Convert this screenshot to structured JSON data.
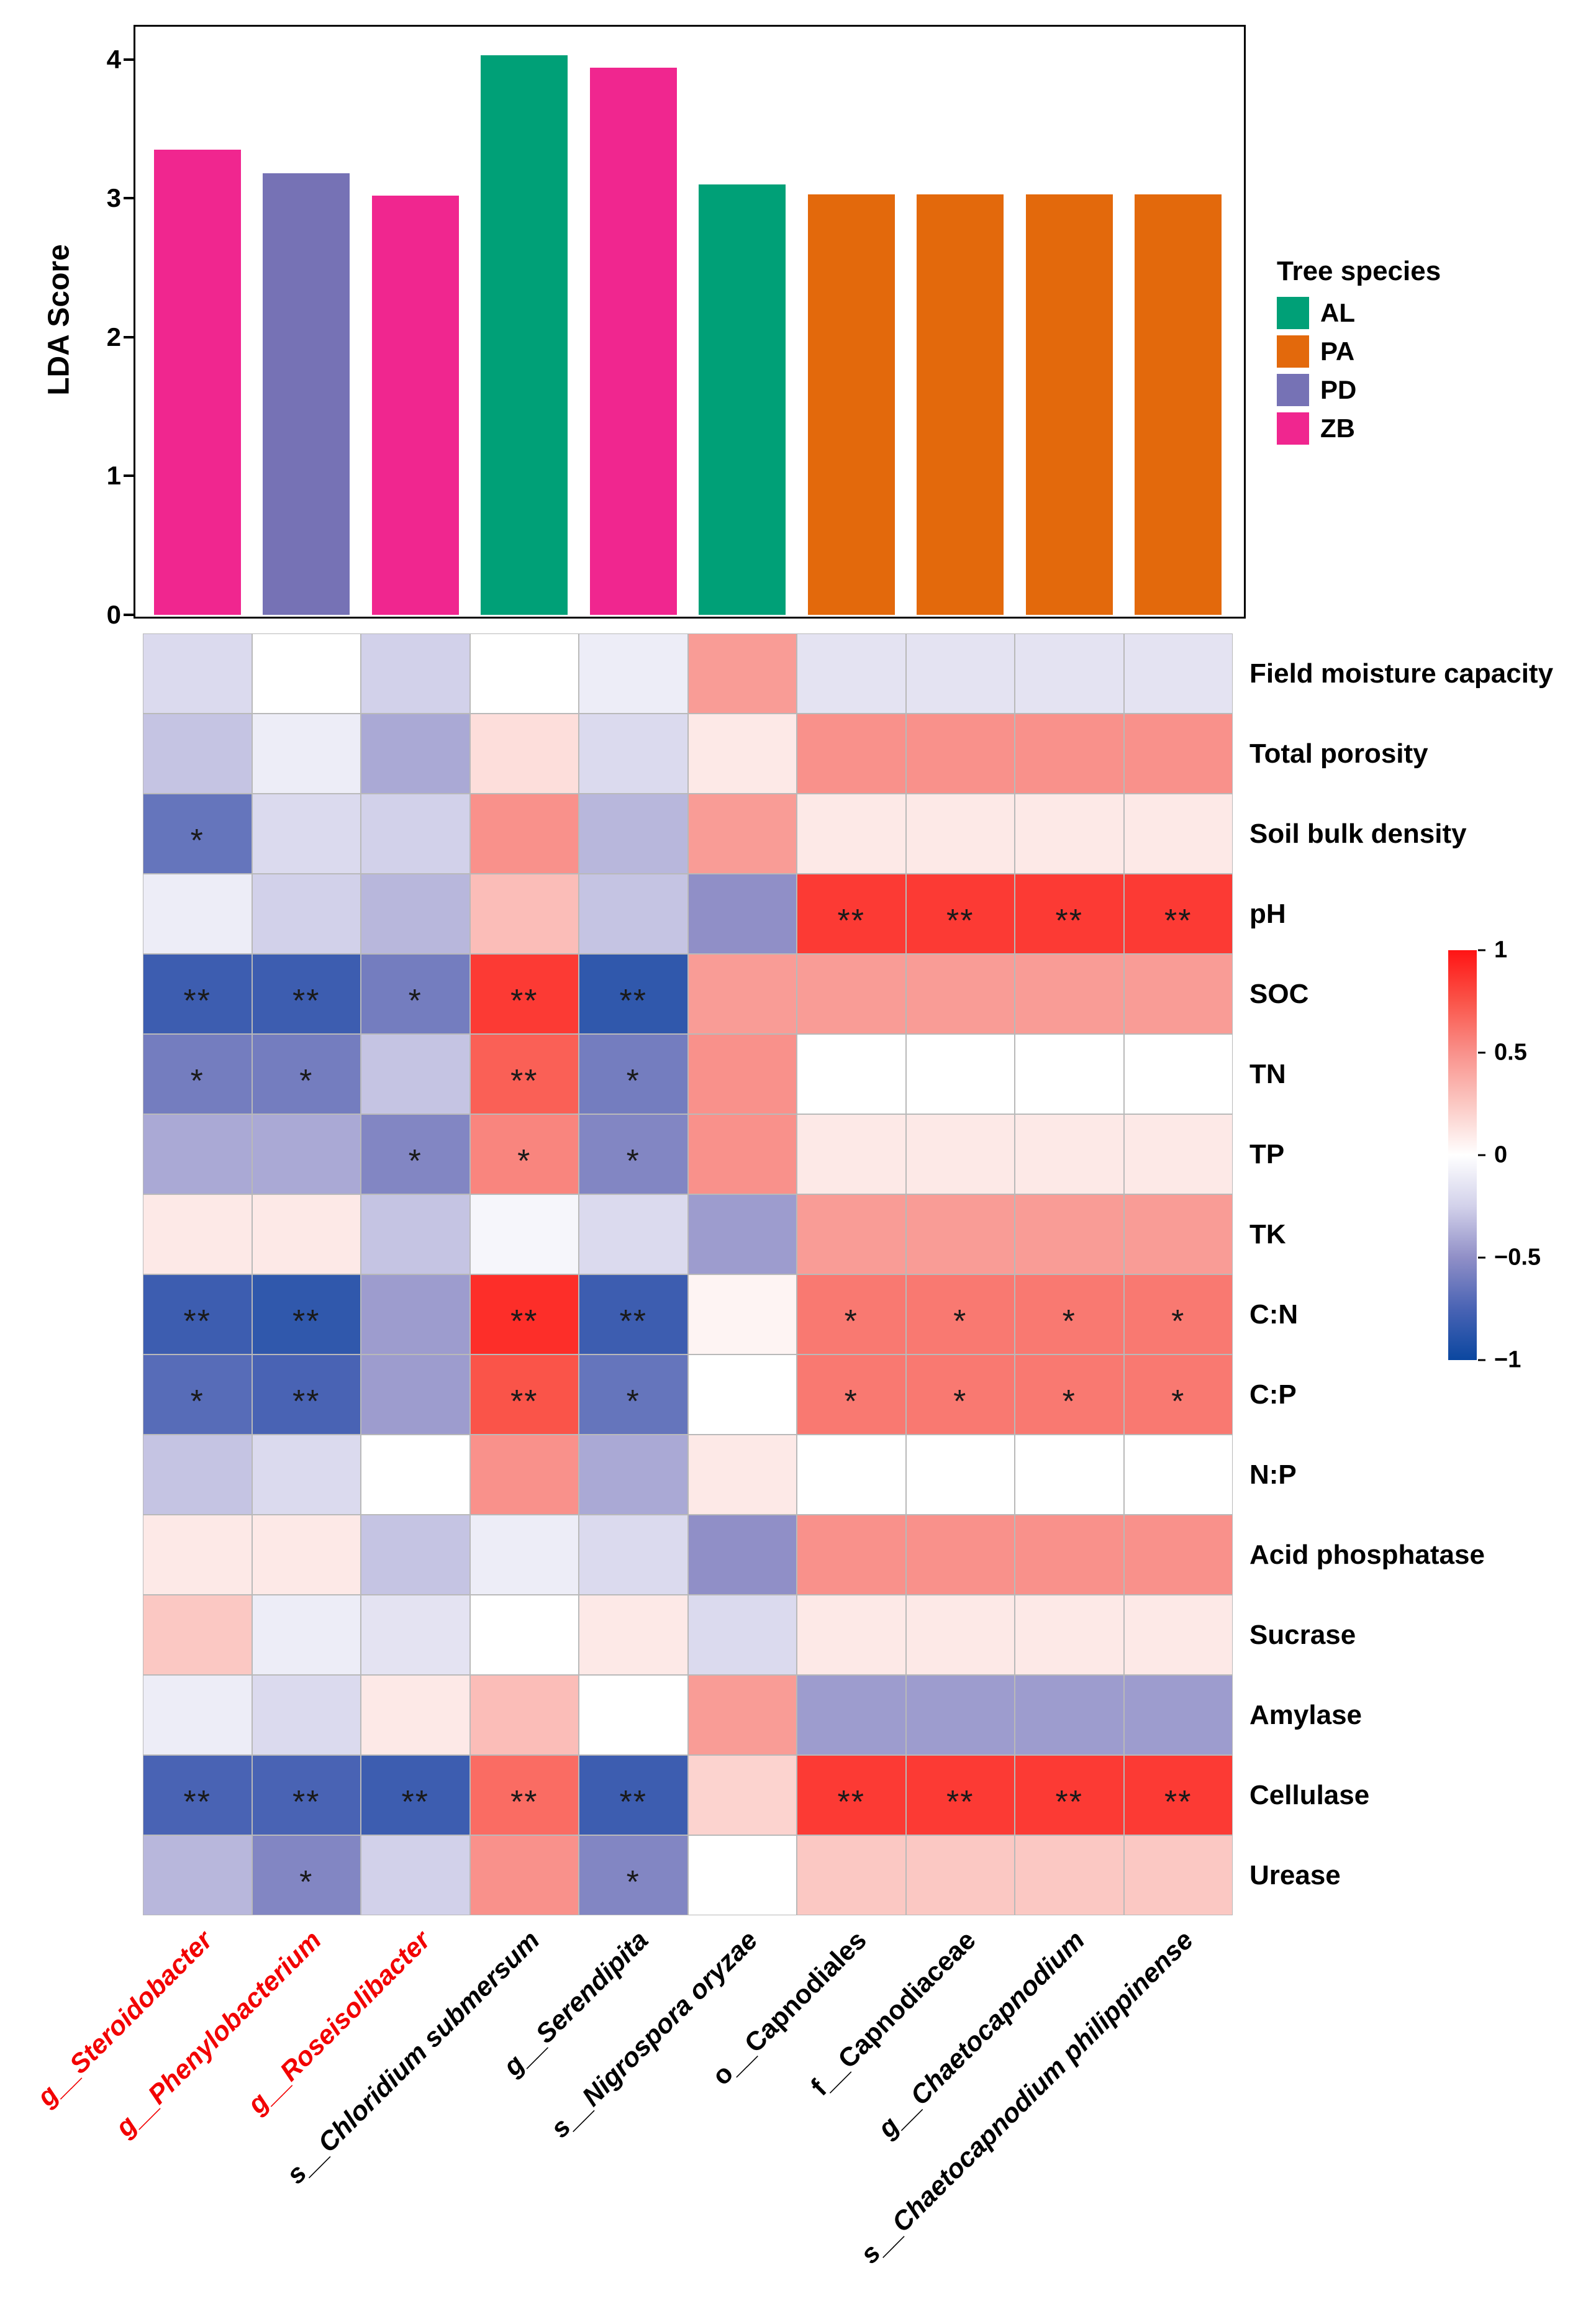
{
  "chart_data": [
    {
      "type": "bar",
      "ylabel": "LDA Score",
      "ylim": [
        0,
        4.25
      ],
      "yticks": [
        0,
        1,
        2,
        3,
        4
      ],
      "categories": [
        "g__Steroidobacter",
        "g__Phenylobacterium",
        "g__Roseisolibacter",
        "s__Chloridium submersum",
        "g__Serendipita",
        "s__Nigrospora oryzae",
        "o__Capnodiales",
        "f__Capnodiaceae",
        "g__Chaetocapnodium",
        "s__Chaetocapnodium philippinense"
      ],
      "groups": [
        "ZB",
        "PD",
        "ZB",
        "AL",
        "ZB",
        "AL",
        "PA",
        "PA",
        "PA",
        "PA"
      ],
      "values": [
        3.35,
        3.18,
        3.02,
        4.03,
        3.94,
        3.1,
        3.03,
        3.03,
        3.03,
        3.03
      ],
      "legend": {
        "title": "Tree species",
        "entries": [
          {
            "label": "AL",
            "color": "#00A077"
          },
          {
            "label": "PA",
            "color": "#E3690C"
          },
          {
            "label": "PD",
            "color": "#7672B5"
          },
          {
            "label": "ZB",
            "color": "#F0268F"
          }
        ]
      }
    },
    {
      "type": "heatmap",
      "rows": [
        "Field moisture capacity",
        "Total porosity",
        "Soil bulk density",
        "pH",
        "SOC",
        "TN",
        "TP",
        "TK",
        "C:N",
        "C:P",
        "N:P",
        "Acid phosphatase",
        "Sucrase",
        "Amylase",
        "Cellulase",
        "Urease"
      ],
      "columns": [
        {
          "label": "g__Steroidobacter",
          "color": "#F20000",
          "italic": true
        },
        {
          "label": "g__Phenylobacterium",
          "color": "#F20000",
          "italic": true
        },
        {
          "label": "g__Roseisolibacter",
          "color": "#F20000",
          "italic": true
        },
        {
          "label": "s__Chloridium submersum",
          "color": "#000000",
          "italic": true
        },
        {
          "label": "g__Serendipita",
          "color": "#000000",
          "italic": true
        },
        {
          "label": "s__Nigrospora oryzae",
          "color": "#000000",
          "italic": true
        },
        {
          "label": "o__Capnodiales",
          "color": "#000000",
          "italic": false
        },
        {
          "label": "f__Capnodiaceae",
          "color": "#000000",
          "italic": false
        },
        {
          "label": "g__Chaetocapnodium",
          "color": "#000000",
          "italic": true
        },
        {
          "label": "s__Chaetocapnodium philippinense",
          "color": "#000000",
          "italic": true
        }
      ],
      "values": [
        [
          -0.2,
          0.0,
          -0.25,
          0.0,
          -0.1,
          0.45,
          -0.15,
          -0.15,
          -0.15,
          -0.15
        ],
        [
          -0.3,
          -0.1,
          -0.4,
          0.15,
          -0.2,
          0.1,
          0.5,
          0.5,
          0.5,
          0.5
        ],
        [
          -0.65,
          -0.2,
          -0.25,
          0.5,
          -0.35,
          0.45,
          0.1,
          0.1,
          0.1,
          0.1
        ],
        [
          -0.1,
          -0.25,
          -0.35,
          0.3,
          -0.3,
          -0.5,
          0.85,
          0.85,
          0.85,
          0.85
        ],
        [
          -0.8,
          -0.8,
          -0.6,
          0.85,
          -0.85,
          0.45,
          0.45,
          0.45,
          0.45,
          0.45
        ],
        [
          -0.6,
          -0.6,
          -0.3,
          0.7,
          -0.6,
          0.5,
          0.0,
          0.0,
          0.0,
          0.0
        ],
        [
          -0.4,
          -0.4,
          -0.55,
          0.55,
          -0.55,
          0.5,
          0.1,
          0.1,
          0.1,
          0.1
        ],
        [
          0.1,
          0.1,
          -0.3,
          -0.05,
          -0.2,
          -0.45,
          0.45,
          0.45,
          0.45,
          0.45
        ],
        [
          -0.8,
          -0.85,
          -0.45,
          0.9,
          -0.8,
          0.05,
          0.6,
          0.6,
          0.6,
          0.6
        ],
        [
          -0.7,
          -0.75,
          -0.45,
          0.75,
          -0.65,
          0.0,
          0.6,
          0.6,
          0.6,
          0.6
        ],
        [
          -0.3,
          -0.2,
          0.0,
          0.5,
          -0.4,
          0.1,
          0.0,
          0.0,
          0.0,
          0.0
        ],
        [
          0.1,
          0.1,
          -0.3,
          -0.1,
          -0.2,
          -0.5,
          0.5,
          0.5,
          0.5,
          0.5
        ],
        [
          0.25,
          -0.1,
          -0.15,
          0.0,
          0.1,
          -0.2,
          0.1,
          0.1,
          0.1,
          0.1
        ],
        [
          -0.1,
          -0.2,
          0.1,
          0.3,
          0.0,
          0.45,
          -0.45,
          -0.45,
          -0.45,
          -0.45
        ],
        [
          -0.75,
          -0.75,
          -0.8,
          0.65,
          -0.8,
          0.2,
          0.85,
          0.85,
          0.85,
          0.85
        ],
        [
          -0.35,
          -0.55,
          -0.25,
          0.5,
          -0.55,
          0.0,
          0.25,
          0.25,
          0.25,
          0.25
        ]
      ],
      "significance": [
        [
          "",
          "",
          "",
          "",
          "",
          "",
          "",
          "",
          "",
          ""
        ],
        [
          "",
          "",
          "",
          "",
          "",
          "",
          "",
          "",
          "",
          ""
        ],
        [
          "*",
          "",
          "",
          "",
          "",
          "",
          "",
          "",
          "",
          ""
        ],
        [
          "",
          "",
          "",
          "",
          "",
          "",
          "**",
          "**",
          "**",
          "**"
        ],
        [
          "**",
          "**",
          "*",
          "**",
          "**",
          "",
          "",
          "",
          "",
          ""
        ],
        [
          "*",
          "*",
          "",
          "**",
          "*",
          "",
          "",
          "",
          "",
          ""
        ],
        [
          "",
          "",
          "*",
          "*",
          "*",
          "",
          "",
          "",
          "",
          ""
        ],
        [
          "",
          "",
          "",
          "",
          "",
          "",
          "",
          "",
          "",
          ""
        ],
        [
          "**",
          "**",
          "",
          "**",
          "**",
          "",
          "*",
          "*",
          "*",
          "*"
        ],
        [
          "*",
          "**",
          "",
          "**",
          "*",
          "",
          "*",
          "*",
          "*",
          "*"
        ],
        [
          "",
          "",
          "",
          "",
          "",
          "",
          "",
          "",
          "",
          ""
        ],
        [
          "",
          "",
          "",
          "",
          "",
          "",
          "",
          "",
          "",
          ""
        ],
        [
          "",
          "",
          "",
          "",
          "",
          "",
          "",
          "",
          "",
          ""
        ],
        [
          "",
          "",
          "",
          "",
          "",
          "",
          "",
          "",
          "",
          ""
        ],
        [
          "**",
          "**",
          "**",
          "**",
          "**",
          "",
          "**",
          "**",
          "**",
          "**"
        ],
        [
          "",
          "*",
          "",
          "",
          "*",
          "",
          "",
          "",
          "",
          ""
        ]
      ],
      "colorbar": {
        "range": [
          -1,
          1
        ],
        "ticks": [
          {
            "label": "1",
            "value": 1
          },
          {
            "label": "0.5",
            "value": 0.5
          },
          {
            "label": "0",
            "value": 0
          },
          {
            "label": "−0.5",
            "value": -0.5
          },
          {
            "label": "−1",
            "value": -1
          }
        ],
        "positive_stops": [
          "#FFFFFF",
          "#FBC8C3",
          "#F9918B",
          "#FA5449",
          "#FF1414"
        ],
        "negative_stops": [
          "#FFFFFF",
          "#D2D1EA",
          "#908FC7",
          "#4963B4",
          "#0B47A0"
        ]
      }
    }
  ]
}
